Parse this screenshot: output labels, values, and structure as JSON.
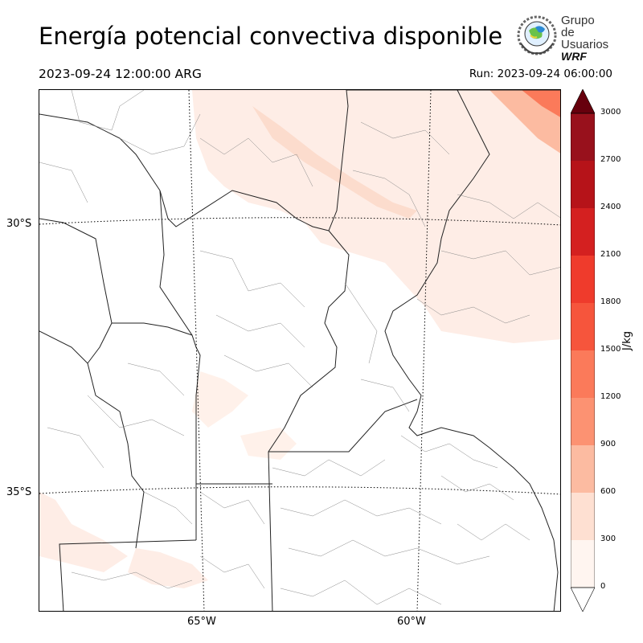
{
  "header": {
    "title": "Energía potencial convectiva disponible",
    "valid_time": "2023-09-24 12:00:00 ARG",
    "run_time": "Run: 2023-09-24 06:00:00"
  },
  "logo": {
    "line1": "Grupo de",
    "line2": "Usuarios",
    "line3": "WRF"
  },
  "map": {
    "latitude_labels": [
      "30°S",
      "35°S"
    ],
    "longitude_labels": [
      "65°W",
      "60°W"
    ],
    "field": "CAPE"
  },
  "colorbar": {
    "unit": "J/kg",
    "ticks": [
      "0",
      "300",
      "600",
      "900",
      "1200",
      "1500",
      "1800",
      "2100",
      "2400",
      "2700",
      "3000"
    ],
    "colors": [
      "#fff5f0",
      "#fee0d2",
      "#fcbba1",
      "#fc9272",
      "#fb7a5a",
      "#f6553c",
      "#ef3b2c",
      "#d42020",
      "#b61319",
      "#98111c",
      "#67000d"
    ]
  }
}
